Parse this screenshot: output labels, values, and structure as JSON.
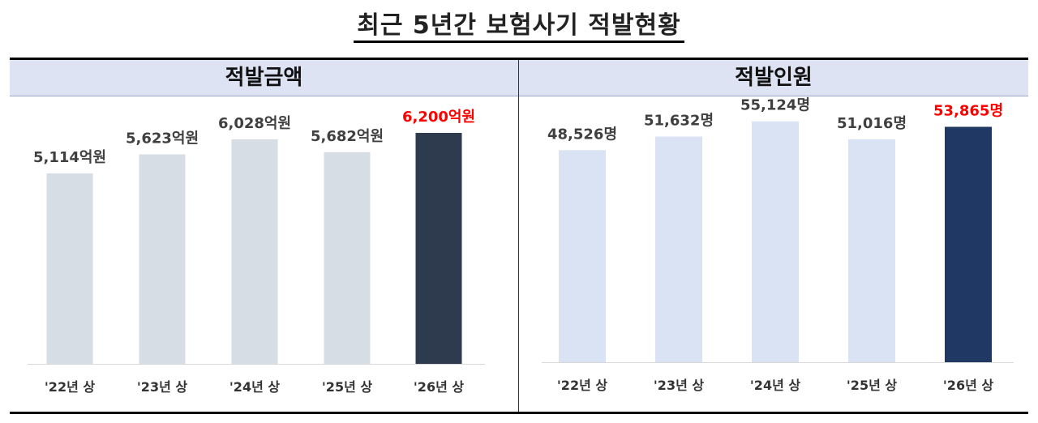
{
  "title": "최근 5년간 보험사기 적발현황",
  "panels": {
    "left_title": "적발금액",
    "right_title": "적발인원"
  },
  "colors": {
    "left_bar": "#d7dde4",
    "left_highlight": "#2e3b4e",
    "right_bar": "#dae3f3",
    "right_highlight": "#1f3864",
    "label": "#404040",
    "highlight_label": "#ff0000"
  },
  "chart_data": [
    {
      "type": "bar",
      "title": "적발금액",
      "categories": [
        "'22년 상",
        "'23년 상",
        "'24년 상",
        "'25년 상",
        "'26년 상"
      ],
      "values": [
        5114,
        5623,
        6028,
        5682,
        6200
      ],
      "data_labels": [
        "5,114억원",
        "5,623억원",
        "6,028억원",
        "5,682억원",
        "6,200억원"
      ],
      "highlight_index": 4,
      "ylim": [
        0,
        7200
      ]
    },
    {
      "type": "bar",
      "title": "적발인원",
      "categories": [
        "'22년 상",
        "'23년 상",
        "'24년 상",
        "'25년 상",
        "'26년 상"
      ],
      "values": [
        48526,
        51632,
        55124,
        51016,
        53865
      ],
      "data_labels": [
        "48,526명",
        "51,632명",
        "55,124명",
        "51,016명",
        "53,865명"
      ],
      "highlight_index": 4,
      "ylim": [
        0,
        61000
      ]
    }
  ]
}
